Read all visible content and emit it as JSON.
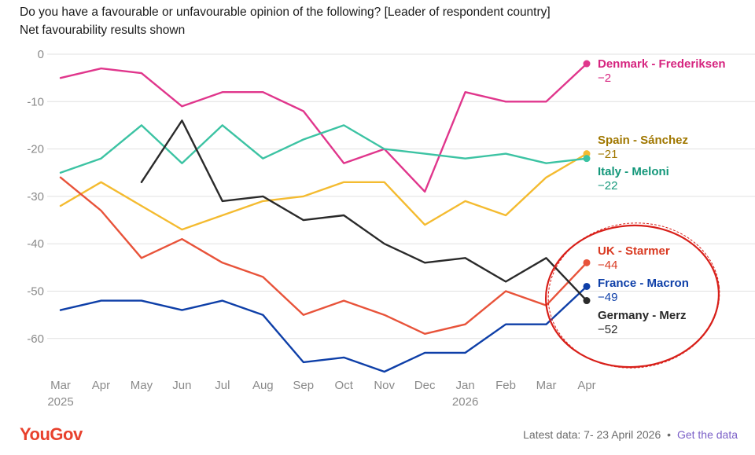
{
  "header": {
    "title": "Do you have a favourable or unfavourable opinion of the following? [Leader of respondent country]",
    "subtitle": "Net favourability results shown"
  },
  "footer": {
    "logo": "YouGov",
    "latest_data": "Latest data: 7- 23 April 2026",
    "separator": "•",
    "link": "Get the data"
  },
  "chart_data": {
    "type": "line",
    "categories": [
      "Mar",
      "Apr",
      "May",
      "Jun",
      "Jul",
      "Aug",
      "Sep",
      "Oct",
      "Nov",
      "Dec",
      "Jan",
      "Feb",
      "Mar",
      "Apr"
    ],
    "year_labels": [
      {
        "index": 0,
        "label": "2025"
      },
      {
        "index": 10,
        "label": "2026"
      }
    ],
    "yticks": [
      0,
      -10,
      -20,
      -30,
      -40,
      -50,
      -60
    ],
    "ylim": [
      -70,
      0
    ],
    "grid": true,
    "legend": "right-end labels",
    "annotation": "red ellipse around UK, France and Germany end labels",
    "series": [
      {
        "name": "Denmark - Frederiksen",
        "color": "#e0368c",
        "label_color": "#d6247f",
        "last_label": "−2",
        "values": [
          -5,
          -3,
          -4,
          -11,
          -8,
          -8,
          -12,
          -23,
          -20,
          -29,
          -8,
          -10,
          -10,
          -2
        ]
      },
      {
        "name": "Spain - Sánchez",
        "color": "#f4bb30",
        "label_color": "#a07700",
        "last_label": "−21",
        "values": [
          -32,
          -27,
          -32,
          -37,
          -34,
          -31,
          -30,
          -27,
          -27,
          -36,
          -31,
          -34,
          -26,
          -21
        ]
      },
      {
        "name": "Italy - Meloni",
        "color": "#3cc3a3",
        "label_color": "#13977a",
        "last_label": "−22",
        "values": [
          -25,
          -22,
          -15,
          -23,
          -15,
          -22,
          -18,
          -15,
          -20,
          -21,
          -22,
          -21,
          -23,
          -22
        ]
      },
      {
        "name": "UK - Starmer",
        "color": "#e8533a",
        "label_color": "#d93a22",
        "last_label": "−44",
        "values": [
          -26,
          -33,
          -43,
          -39,
          -44,
          -47,
          -55,
          -52,
          -55,
          -59,
          -57,
          -50,
          -53,
          -44
        ]
      },
      {
        "name": "France - Macron",
        "color": "#0e3fa8",
        "label_color": "#0e3fa8",
        "last_label": "−49",
        "values": [
          -54,
          -52,
          -52,
          -54,
          -52,
          -55,
          -65,
          -64,
          -67,
          -63,
          -63,
          -57,
          -57,
          -49
        ]
      },
      {
        "name": "Germany - Merz",
        "color": "#2a2a2a",
        "label_color": "#2a2a2a",
        "last_label": "−52",
        "values": [
          null,
          null,
          -27,
          -14,
          -31,
          -30,
          -35,
          -34,
          -40,
          -44,
          -43,
          -48,
          -43,
          -52
        ]
      }
    ]
  }
}
